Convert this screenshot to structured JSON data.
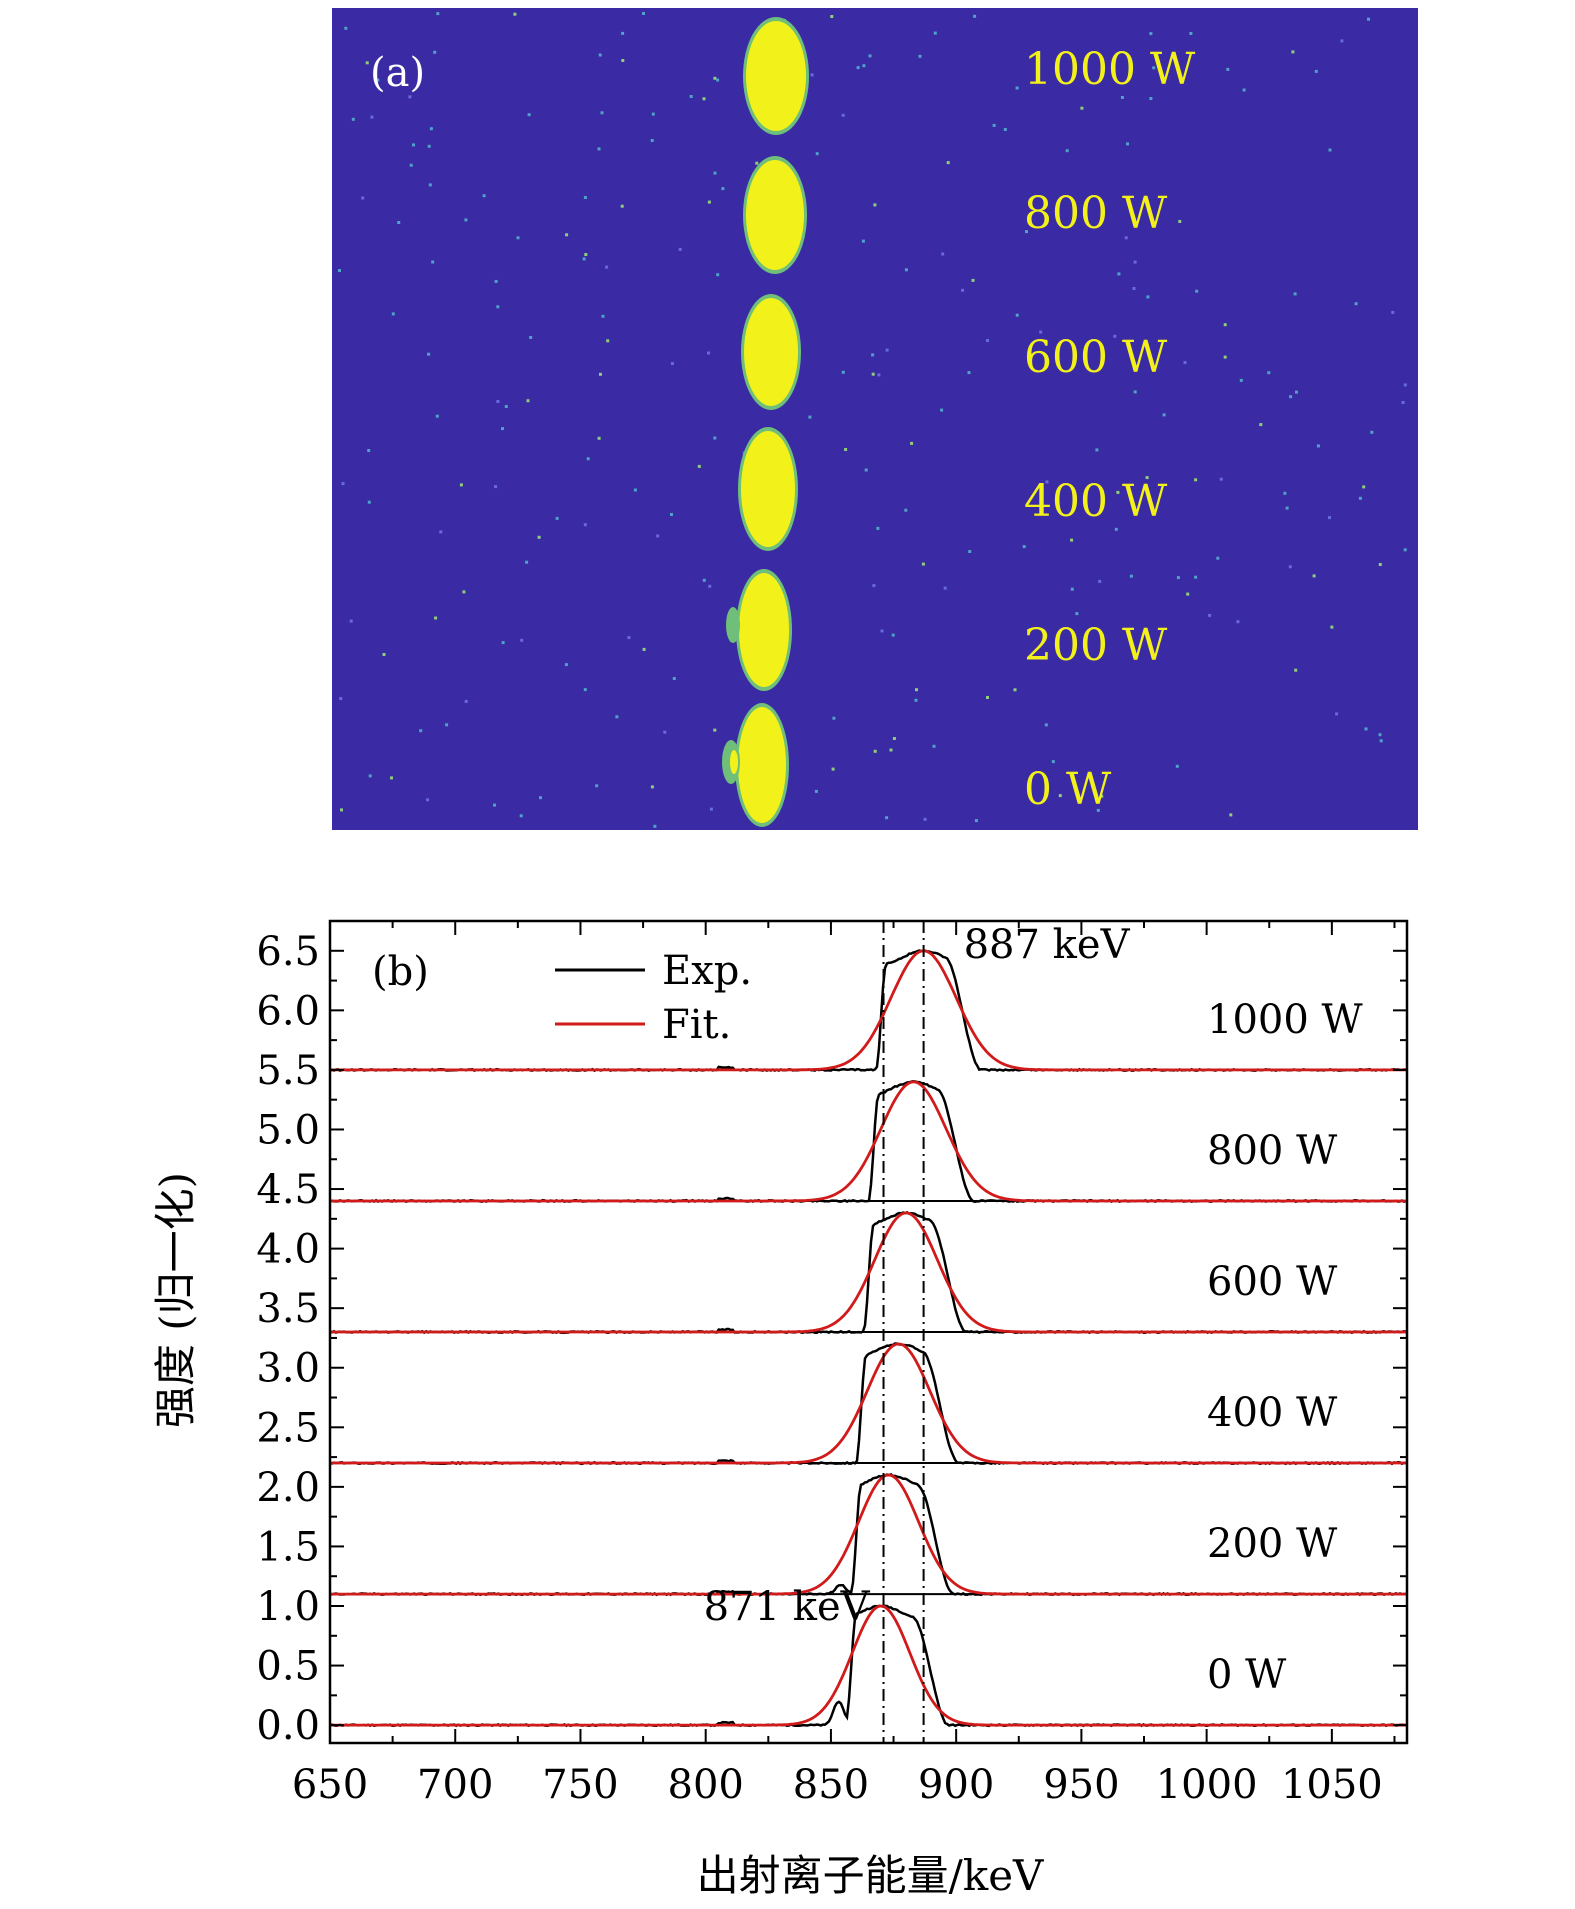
{
  "panel_a": {
    "label": "(a)",
    "background_color": "#3a2aa3",
    "spot_color": "#f2f21a",
    "spot_edge_color": "#6fbf7a",
    "power_labels": [
      "1000 W",
      "800 W",
      "600 W",
      "400 W",
      "200 W",
      "0 W"
    ]
  },
  "chart_data": {
    "type": "line",
    "panel_label": "(b)",
    "xlabel": "出射离子能量/keV",
    "ylabel": "强度 (归一化)",
    "xlim": [
      650,
      1080
    ],
    "ylim": [
      -0.15,
      6.75
    ],
    "x_ticks": [
      650,
      700,
      750,
      800,
      850,
      900,
      950,
      1000,
      1050
    ],
    "y_ticks": [
      0.0,
      0.5,
      1.0,
      1.5,
      2.0,
      2.5,
      3.0,
      3.5,
      4.0,
      4.5,
      5.0,
      5.5,
      6.0,
      6.5
    ],
    "legend": {
      "placement": "top-left",
      "entries": [
        {
          "name": "Exp.",
          "color": "#000000"
        },
        {
          "name": "Fit.",
          "color": "#d11a1a"
        }
      ]
    },
    "reference_lines": [
      {
        "x": 871,
        "style": "dash-dot",
        "label": "871 keV"
      },
      {
        "x": 887,
        "style": "dash-dot",
        "label": "887 keV"
      }
    ],
    "series_offsets": [
      0.0,
      1.1,
      2.2,
      3.3,
      4.4,
      5.5
    ],
    "separator_lines_y": [
      1.1,
      2.2,
      3.3,
      4.4
    ],
    "spectra": [
      {
        "power": "0 W",
        "offset": 0.0,
        "fit_center": 870,
        "fit_sigma": 11.5,
        "fit_amplitude": 1.0,
        "exp_left_edge": 858,
        "exp_right_edge": 893
      },
      {
        "power": "200 W",
        "offset": 1.1,
        "fit_center": 873,
        "fit_sigma": 12.0,
        "fit_amplitude": 1.0,
        "exp_left_edge": 860,
        "exp_right_edge": 895
      },
      {
        "power": "400 W",
        "offset": 2.2,
        "fit_center": 877,
        "fit_sigma": 12.5,
        "fit_amplitude": 1.0,
        "exp_left_edge": 862,
        "exp_right_edge": 897
      },
      {
        "power": "600 W",
        "offset": 3.3,
        "fit_center": 880,
        "fit_sigma": 12.5,
        "fit_amplitude": 1.0,
        "exp_left_edge": 865,
        "exp_right_edge": 900
      },
      {
        "power": "800 W",
        "offset": 4.4,
        "fit_center": 883,
        "fit_sigma": 13.0,
        "fit_amplitude": 1.0,
        "exp_left_edge": 867,
        "exp_right_edge": 903
      },
      {
        "power": "1000 W",
        "offset": 5.5,
        "fit_center": 887,
        "fit_sigma": 13.0,
        "fit_amplitude": 1.0,
        "exp_left_edge": 870,
        "exp_right_edge": 906
      }
    ],
    "grid": false
  }
}
